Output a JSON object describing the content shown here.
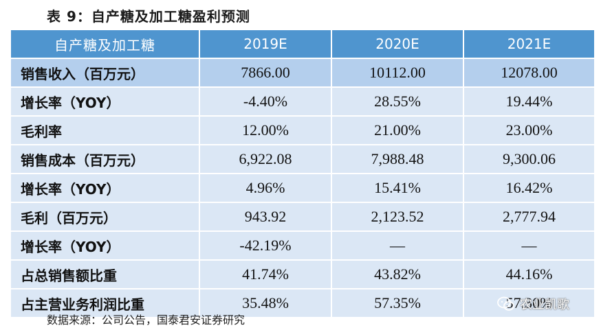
{
  "title": "表 9：自产糖及加工糖盈利预测",
  "table": {
    "headers": [
      "自产糖及加工糖",
      "2019E",
      "2020E",
      "2021E"
    ],
    "rows": [
      {
        "label": "销售收入（百万元）",
        "values": [
          "7866.00",
          "10112.00",
          "12078.00"
        ]
      },
      {
        "label": "增长率（YOY）",
        "values": [
          "-4.40%",
          "28.55%",
          "19.44%"
        ]
      },
      {
        "label": "毛利率",
        "values": [
          "12.00%",
          "21.00%",
          "23.00%"
        ]
      },
      {
        "label": "销售成本（百万元）",
        "values": [
          "6,922.08",
          "7,988.48",
          "9,300.06"
        ]
      },
      {
        "label": "增长率（YOY）",
        "values": [
          "4.96%",
          "15.41%",
          "16.42%"
        ]
      },
      {
        "label": "毛利（百万元）",
        "values": [
          "943.92",
          "2,123.52",
          "2,777.94"
        ]
      },
      {
        "label": "增长率（YOY）",
        "values": [
          "-42.19%",
          "—",
          "—"
        ]
      },
      {
        "label": "占总销售额比重",
        "values": [
          "41.74%",
          "43.82%",
          "44.16%"
        ]
      },
      {
        "label": "占主营业务利润比重",
        "values": [
          "35.48%",
          "57.35%",
          "57.30%"
        ]
      }
    ]
  },
  "source": "数据来源：公司公告，国泰君安证券研究",
  "watermark": {
    "text": "农业凯歌",
    "icon": "wechat-icon"
  },
  "colors": {
    "header_bg": "#4f95cf",
    "row_dark": "#b4cfed",
    "row_light": "#dbe7f5"
  }
}
